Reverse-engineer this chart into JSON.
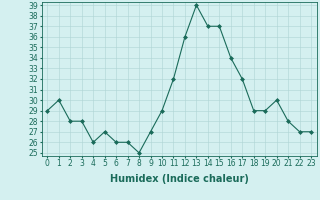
{
  "title": "",
  "xlabel": "Humidex (Indice chaleur)",
  "x": [
    0,
    1,
    2,
    3,
    4,
    5,
    6,
    7,
    8,
    9,
    10,
    11,
    12,
    13,
    14,
    15,
    16,
    17,
    18,
    19,
    20,
    21,
    22,
    23
  ],
  "y": [
    29,
    30,
    28,
    28,
    26,
    27,
    26,
    26,
    25,
    27,
    29,
    32,
    36,
    39,
    37,
    37,
    34,
    32,
    29,
    29,
    30,
    28,
    27,
    27
  ],
  "ylim_min": 25,
  "ylim_max": 39,
  "yticks": [
    25,
    26,
    27,
    28,
    29,
    30,
    31,
    32,
    33,
    34,
    35,
    36,
    37,
    38,
    39
  ],
  "xticks": [
    0,
    1,
    2,
    3,
    4,
    5,
    6,
    7,
    8,
    9,
    10,
    11,
    12,
    13,
    14,
    15,
    16,
    17,
    18,
    19,
    20,
    21,
    22,
    23
  ],
  "line_color": "#1a6b5a",
  "marker": "D",
  "marker_size": 2,
  "bg_color": "#d4f0f0",
  "grid_color": "#aed4d4",
  "tick_label_fontsize": 5.5,
  "xlabel_fontsize": 7,
  "xlim_min": -0.5,
  "xlim_max": 23.5
}
